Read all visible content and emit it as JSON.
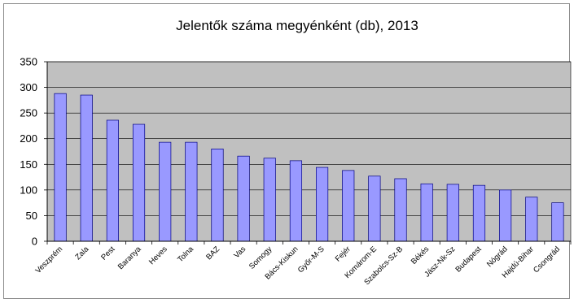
{
  "chart_data": {
    "type": "bar",
    "title": "Jelentők száma megyénként (db), 2013",
    "xlabel": "",
    "ylabel": "",
    "ylim": [
      0,
      350
    ],
    "yticks": [
      "0",
      "50",
      "100",
      "150",
      "200",
      "250",
      "300",
      "350"
    ],
    "grid": true,
    "legend": "none",
    "categories": [
      "Veszprém",
      "Zala",
      "Pest",
      "Baranya",
      "Heves",
      "Tolna",
      "BAZ",
      "Vas",
      "Somogy",
      "Bács-Kiskun",
      "Győr-M-S",
      "Fejér",
      "Komárom-E",
      "Szabolcs-Sz-B",
      "Békés",
      "Jász-Nk-Sz",
      "Budapest",
      "Nógrád",
      "Hajdú-Bihar",
      "Csongrád"
    ],
    "values": [
      288,
      285,
      236,
      228,
      193,
      193,
      180,
      166,
      162,
      157,
      144,
      138,
      127,
      122,
      112,
      111,
      109,
      100,
      86,
      75
    ],
    "colors": {
      "plot_background": "#c0c0c0",
      "bar_fill": "#9999ff",
      "bar_stroke": "#000080",
      "grid": "#000000",
      "axis": "#000000"
    }
  }
}
